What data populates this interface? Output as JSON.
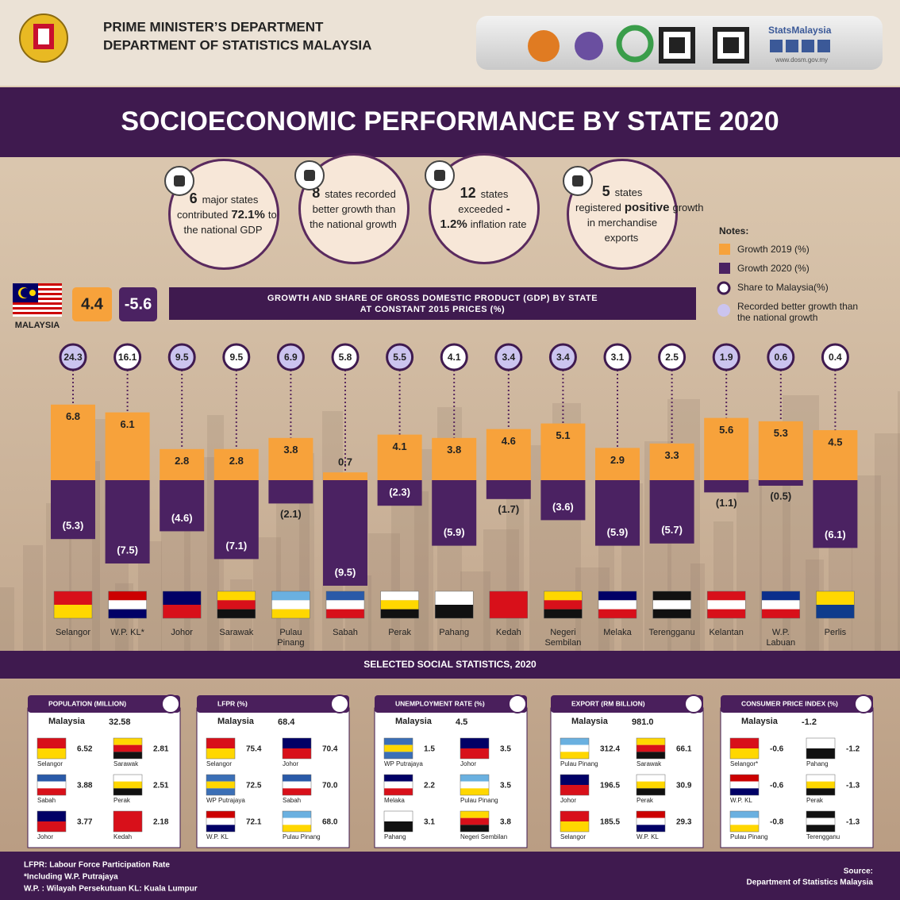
{
  "header": {
    "line1": "PRIME MINISTER’S DEPARTMENT",
    "line2": "DEPARTMENT OF STATISTICS MALAYSIA",
    "brand": "StatsMalaysia",
    "url": "www.dosm.gov.my"
  },
  "title": "SOCIOECONOMIC PERFORMANCE BY STATE 2020",
  "highlights": [
    {
      "number": "6",
      "text1": "major states contributed",
      "emph": "72.1%",
      "text2": "to the national GDP"
    },
    {
      "number": "8",
      "text1": "states recorded better growth than the national growth"
    },
    {
      "number": "12",
      "text1": "states exceeded",
      "emph": "-1.2%",
      "text2": "inflation rate"
    },
    {
      "number": "5",
      "text1": "states registered",
      "emph": "positive",
      "text2": "growth in merchandise exports"
    }
  ],
  "chart_data": {
    "type": "bar",
    "title": "GROWTH AND SHARE OF GROSS DOMESTIC PRODUCT (GDP) BY STATE AT CONSTANT 2015 PRICES (%)",
    "notes_title": "Notes:",
    "national": {
      "label": "MALAYSIA",
      "values": [
        4.4,
        -5.6
      ]
    },
    "categories": [
      "Selangor",
      "W.P. KL*",
      "Johor",
      "Sarawak",
      "Pulau Pinang",
      "Sabah",
      "Perak",
      "Pahang",
      "Kedah",
      "Negeri Sembilan",
      "Melaka",
      "Terengganu",
      "Kelantan",
      "W.P. Labuan",
      "Perlis"
    ],
    "flag_colors": [
      [
        "#d8101a",
        "#ffd700"
      ],
      [
        "#cc0001",
        "#ffffff",
        "#010066"
      ],
      [
        "#010066",
        "#d8101a"
      ],
      [
        "#ffd700",
        "#d8101a",
        "#111111"
      ],
      [
        "#6ab0e0",
        "#ffffff",
        "#ffd700"
      ],
      [
        "#2a5aa8",
        "#ffffff",
        "#d8101a"
      ],
      [
        "#ffffff",
        "#ffd700",
        "#111111"
      ],
      [
        "#ffffff",
        "#111111"
      ],
      [
        "#d8101a",
        "#d8101a"
      ],
      [
        "#ffd700",
        "#d8101a",
        "#111111"
      ],
      [
        "#010066",
        "#ffffff",
        "#d8101a"
      ],
      [
        "#111111",
        "#ffffff",
        "#111111"
      ],
      [
        "#d8101a",
        "#ffffff",
        "#d8101a"
      ],
      [
        "#0b2e8c",
        "#ffffff",
        "#d8101a"
      ],
      [
        "#ffd700",
        "#0f3c8c"
      ]
    ],
    "series": [
      {
        "name": "Growth 2019 (%)",
        "color": "#f7a23b",
        "values": [
          6.8,
          6.1,
          2.8,
          2.8,
          3.8,
          0.7,
          4.1,
          3.8,
          4.6,
          5.1,
          2.9,
          3.3,
          5.6,
          5.3,
          4.5
        ]
      },
      {
        "name": "Growth 2020 (%)",
        "color": "#4b2262",
        "values": [
          -5.3,
          -7.5,
          -4.6,
          -7.1,
          -2.1,
          -9.5,
          -2.3,
          -5.9,
          -1.7,
          -3.6,
          -5.9,
          -5.7,
          -1.1,
          -0.5,
          -6.1
        ],
        "value_labels": [
          "(5.3)",
          "(7.5)",
          "(4.6)",
          "(7.1)",
          "(2.1)",
          "(9.5)",
          "(2.3)",
          "(5.9)",
          "(1.7)",
          "(3.6)",
          "(5.9)",
          "(5.7)",
          "(1.1)",
          "(0.5)",
          "(6.1)"
        ]
      }
    ],
    "share": {
      "name": "Share to Malaysia(%)",
      "values": [
        24.3,
        16.1,
        9.5,
        9.5,
        6.9,
        5.8,
        5.5,
        4.1,
        3.4,
        3.4,
        3.1,
        2.5,
        1.9,
        0.6,
        0.4
      ]
    },
    "better_growth_label": "Recorded better growth than the national growth",
    "better_color": "#cbc4ef"
  },
  "social": {
    "title": "SELECTED SOCIAL STATISTICS, 2020",
    "panels": [
      {
        "title": "POPULATION (MILLION)",
        "national_label": "Malaysia",
        "national_value": "32.58",
        "items": [
          {
            "name": "Selangor",
            "value": "6.52",
            "flag": [
              "#d8101a",
              "#ffd700"
            ]
          },
          {
            "name": "Sarawak",
            "value": "2.81",
            "flag": [
              "#ffd700",
              "#d8101a",
              "#111111"
            ]
          },
          {
            "name": "Sabah",
            "value": "3.88",
            "flag": [
              "#2a5aa8",
              "#ffffff",
              "#d8101a"
            ]
          },
          {
            "name": "Perak",
            "value": "2.51",
            "flag": [
              "#ffffff",
              "#ffd700",
              "#111111"
            ]
          },
          {
            "name": "Johor",
            "value": "3.77",
            "flag": [
              "#010066",
              "#d8101a"
            ]
          },
          {
            "name": "Kedah",
            "value": "2.18",
            "flag": [
              "#d8101a",
              "#d8101a"
            ]
          }
        ]
      },
      {
        "title": "LFPR (%)",
        "national_label": "Malaysia",
        "national_value": "68.4",
        "items": [
          {
            "name": "Selangor",
            "value": "75.4",
            "flag": [
              "#d8101a",
              "#ffd700"
            ]
          },
          {
            "name": "Johor",
            "value": "70.4",
            "flag": [
              "#010066",
              "#d8101a"
            ]
          },
          {
            "name": "WP Putrajaya",
            "value": "72.5",
            "flag": [
              "#3b6fb6",
              "#ffd700",
              "#3b6fb6"
            ]
          },
          {
            "name": "Sabah",
            "value": "70.0",
            "flag": [
              "#2a5aa8",
              "#ffffff",
              "#d8101a"
            ]
          },
          {
            "name": "W.P. KL",
            "value": "72.1",
            "flag": [
              "#cc0001",
              "#ffffff",
              "#010066"
            ]
          },
          {
            "name": "Pulau Pinang",
            "value": "68.0",
            "flag": [
              "#6ab0e0",
              "#ffffff",
              "#ffd700"
            ]
          }
        ]
      },
      {
        "title": "UNEMPLOYMENT RATE (%)",
        "national_label": "Malaysia",
        "national_value": "4.5",
        "items": [
          {
            "name": "WP Putrajaya",
            "value": "1.5",
            "flag": [
              "#3b6fb6",
              "#ffd700",
              "#3b6fb6"
            ]
          },
          {
            "name": "Johor",
            "value": "3.5",
            "flag": [
              "#010066",
              "#d8101a"
            ]
          },
          {
            "name": "Melaka",
            "value": "2.2",
            "flag": [
              "#010066",
              "#ffffff",
              "#d8101a"
            ]
          },
          {
            "name": "Pulau Pinang",
            "value": "3.5",
            "flag": [
              "#6ab0e0",
              "#ffffff",
              "#ffd700"
            ]
          },
          {
            "name": "Pahang",
            "value": "3.1",
            "flag": [
              "#ffffff",
              "#111111"
            ]
          },
          {
            "name": "Negeri Sembilan",
            "value": "3.8",
            "flag": [
              "#ffd700",
              "#d8101a",
              "#111111"
            ]
          }
        ]
      },
      {
        "title": "EXPORT (RM BILLION)",
        "national_label": "Malaysia",
        "national_value": "981.0",
        "items": [
          {
            "name": "Pulau Pinang",
            "value": "312.4",
            "flag": [
              "#6ab0e0",
              "#ffffff",
              "#ffd700"
            ]
          },
          {
            "name": "Sarawak",
            "value": "66.1",
            "flag": [
              "#ffd700",
              "#d8101a",
              "#111111"
            ]
          },
          {
            "name": "Johor",
            "value": "196.5",
            "flag": [
              "#010066",
              "#d8101a"
            ]
          },
          {
            "name": "Perak",
            "value": "30.9",
            "flag": [
              "#ffffff",
              "#ffd700",
              "#111111"
            ]
          },
          {
            "name": "Selangor",
            "value": "185.5",
            "flag": [
              "#d8101a",
              "#ffd700"
            ]
          },
          {
            "name": "W.P. KL",
            "value": "29.3",
            "flag": [
              "#cc0001",
              "#ffffff",
              "#010066"
            ]
          }
        ]
      },
      {
        "title": "CONSUMER PRICE INDEX (%)",
        "national_label": "Malaysia",
        "national_value": "-1.2",
        "items": [
          {
            "name": "Selangor*",
            "value": "-0.6",
            "flag": [
              "#d8101a",
              "#ffd700"
            ]
          },
          {
            "name": "Pahang",
            "value": "-1.2",
            "flag": [
              "#ffffff",
              "#111111"
            ]
          },
          {
            "name": "W.P. KL",
            "value": "-0.6",
            "flag": [
              "#cc0001",
              "#ffffff",
              "#010066"
            ]
          },
          {
            "name": "Perak",
            "value": "-1.3",
            "flag": [
              "#ffffff",
              "#ffd700",
              "#111111"
            ]
          },
          {
            "name": "Pulau Pinang",
            "value": "-0.8",
            "flag": [
              "#6ab0e0",
              "#ffffff",
              "#ffd700"
            ]
          },
          {
            "name": "Terengganu",
            "value": "-1.3",
            "flag": [
              "#111111",
              "#ffffff",
              "#111111"
            ]
          }
        ]
      }
    ]
  },
  "footer": {
    "notes": [
      "LFPR: Labour Force Participation Rate",
      "*Including W.P. Putrajaya",
      "W.P. : Wilayah Persekutuan   KL: Kuala Lumpur"
    ],
    "source_label": "Source:",
    "source": "Department of Statistics Malaysia"
  }
}
